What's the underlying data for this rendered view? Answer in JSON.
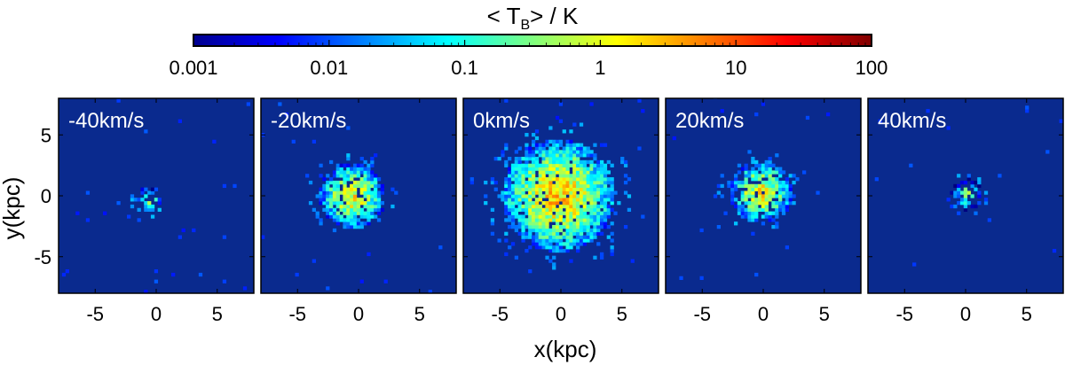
{
  "chart_data": {
    "type": "heatmap",
    "colorbar": {
      "label_prefix": "< T",
      "label_sub": "B",
      "label_suffix": ">  / K",
      "scale": "log",
      "range": [
        0.001,
        100
      ],
      "tick_labels": [
        "0.001",
        "0.01",
        "0.1",
        "1",
        "10",
        "100"
      ],
      "tick_values": [
        0.001,
        0.01,
        0.1,
        1,
        10,
        100
      ],
      "colormap": "jet"
    },
    "xlabel": "x(kpc)",
    "ylabel": "y(kpc)",
    "xlim": [
      -8,
      8
    ],
    "ylim": [
      -8,
      8
    ],
    "xticks": [
      -5,
      0,
      5
    ],
    "yticks": [
      5,
      0,
      -5
    ],
    "xtick_labels": [
      "-5",
      "0",
      "5"
    ],
    "ytick_labels": [
      "5",
      "0",
      "-5"
    ],
    "panels": [
      {
        "label": "-40km/s",
        "velocity": -40,
        "center": [
          -0.6,
          -0.4
        ],
        "radius": 1.1,
        "peak_log": -0.6,
        "density": 0.45
      },
      {
        "label": "-20km/s",
        "velocity": -20,
        "center": [
          -0.5,
          0.0
        ],
        "radius": 2.7,
        "peak_log": 0.1,
        "density": 0.8
      },
      {
        "label": "0km/s",
        "velocity": 0,
        "center": [
          -0.2,
          0.0
        ],
        "radius": 4.6,
        "peak_log": 0.35,
        "density": 0.9
      },
      {
        "label": "20km/s",
        "velocity": 20,
        "center": [
          -0.2,
          0.3
        ],
        "radius": 2.6,
        "peak_log": 0.1,
        "density": 0.8
      },
      {
        "label": "40km/s",
        "velocity": 40,
        "center": [
          0.1,
          0.1
        ],
        "radius": 1.3,
        "peak_log": -0.6,
        "density": 0.45
      }
    ],
    "colors": {
      "background": "#0a2a8e",
      "frame": "#000000",
      "label": "#ffffff"
    }
  }
}
